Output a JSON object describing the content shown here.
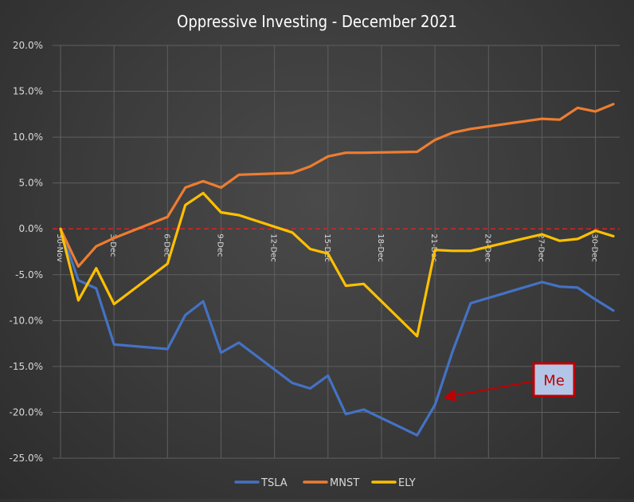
{
  "chart_data": {
    "type": "line",
    "title": "Oppressive Investing - December 2021",
    "xlabel": "",
    "ylabel": "",
    "x_start": "2021-11-30",
    "x_end": "2021-12-31",
    "x_tick_labels": [
      "30-Nov",
      "3-Dec",
      "6-Dec",
      "9-Dec",
      "12-Dec",
      "15-Dec",
      "18-Dec",
      "21-Dec",
      "24-Dec",
      "27-Dec",
      "30-Dec"
    ],
    "ylim": [
      -25,
      20
    ],
    "y_tick_labels": [
      "20.0%",
      "15.0%",
      "10.0%",
      "5.0%",
      "0.0%",
      "-5.0%",
      "-10.0%",
      "-15.0%",
      "-20.0%",
      "-25.0%"
    ],
    "grid": true,
    "legend_position": "bottom",
    "reference_line": {
      "y": 0,
      "color": "#e02020",
      "style": "dashed"
    },
    "series": [
      {
        "name": "TSLA",
        "color": "#4472c4",
        "points": [
          [
            "2021-11-30",
            0.0
          ],
          [
            "2021-12-01",
            -5.6
          ],
          [
            "2021-12-02",
            -6.5
          ],
          [
            "2021-12-03",
            -12.6
          ],
          [
            "2021-12-06",
            -13.1
          ],
          [
            "2021-12-07",
            -9.4
          ],
          [
            "2021-12-08",
            -7.9
          ],
          [
            "2021-12-09",
            -13.5
          ],
          [
            "2021-12-10",
            -12.4
          ],
          [
            "2021-12-13",
            -16.8
          ],
          [
            "2021-12-14",
            -17.4
          ],
          [
            "2021-12-15",
            -16.0
          ],
          [
            "2021-12-16",
            -20.2
          ],
          [
            "2021-12-17",
            -19.7
          ],
          [
            "2021-12-20",
            -22.5
          ],
          [
            "2021-12-21",
            -19.2
          ],
          [
            "2021-12-22",
            -13.3
          ],
          [
            "2021-12-23",
            -8.1
          ],
          [
            "2021-12-27",
            -5.8
          ],
          [
            "2021-12-28",
            -6.3
          ],
          [
            "2021-12-29",
            -6.4
          ],
          [
            "2021-12-30",
            -7.7
          ],
          [
            "2021-12-31",
            -8.9
          ]
        ]
      },
      {
        "name": "MNST",
        "color": "#ed7d31",
        "points": [
          [
            "2021-11-30",
            0.0
          ],
          [
            "2021-12-01",
            -4.1
          ],
          [
            "2021-12-02",
            -1.9
          ],
          [
            "2021-12-03",
            -1.0
          ],
          [
            "2021-12-06",
            1.3
          ],
          [
            "2021-12-07",
            4.5
          ],
          [
            "2021-12-08",
            5.2
          ],
          [
            "2021-12-09",
            4.5
          ],
          [
            "2021-12-10",
            5.9
          ],
          [
            "2021-12-13",
            6.1
          ],
          [
            "2021-12-14",
            6.8
          ],
          [
            "2021-12-15",
            7.9
          ],
          [
            "2021-12-16",
            8.3
          ],
          [
            "2021-12-17",
            8.3
          ],
          [
            "2021-12-20",
            8.4
          ],
          [
            "2021-12-21",
            9.7
          ],
          [
            "2021-12-22",
            10.5
          ],
          [
            "2021-12-23",
            10.9
          ],
          [
            "2021-12-27",
            12.0
          ],
          [
            "2021-12-28",
            11.9
          ],
          [
            "2021-12-29",
            13.2
          ],
          [
            "2021-12-30",
            12.8
          ],
          [
            "2021-12-31",
            13.6
          ]
        ]
      },
      {
        "name": "ELY",
        "color": "#ffc000",
        "points": [
          [
            "2021-11-30",
            0.0
          ],
          [
            "2021-12-01",
            -7.8
          ],
          [
            "2021-12-02",
            -4.3
          ],
          [
            "2021-12-03",
            -8.2
          ],
          [
            "2021-12-06",
            -3.8
          ],
          [
            "2021-12-07",
            2.6
          ],
          [
            "2021-12-08",
            3.9
          ],
          [
            "2021-12-09",
            1.8
          ],
          [
            "2021-12-10",
            1.5
          ],
          [
            "2021-12-13",
            -0.4
          ],
          [
            "2021-12-14",
            -2.2
          ],
          [
            "2021-12-15",
            -2.7
          ],
          [
            "2021-12-16",
            -6.2
          ],
          [
            "2021-12-17",
            -6.0
          ],
          [
            "2021-12-20",
            -11.7
          ],
          [
            "2021-12-21",
            -2.3
          ],
          [
            "2021-12-22",
            -2.4
          ],
          [
            "2021-12-23",
            -2.4
          ],
          [
            "2021-12-27",
            -0.6
          ],
          [
            "2021-12-28",
            -1.3
          ],
          [
            "2021-12-29",
            -1.1
          ],
          [
            "2021-12-30",
            -0.2
          ],
          [
            "2021-12-31",
            -0.8
          ]
        ]
      }
    ],
    "annotation": {
      "text": "Me",
      "points_to": [
        "2021-12-21",
        -18.0
      ],
      "box_fill": "#b4c6e7",
      "box_border": "#c00000",
      "text_color": "#c00000",
      "arrow_color": "#c00000"
    }
  }
}
